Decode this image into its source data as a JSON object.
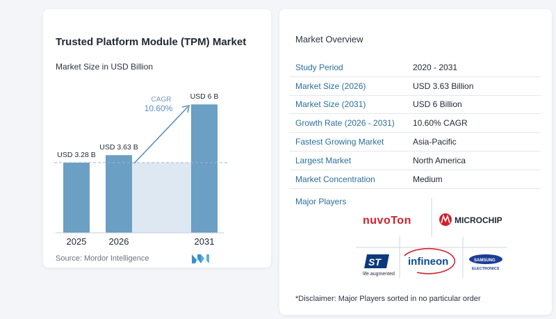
{
  "chart": {
    "title": "Trusted Platform Module (TPM) Market",
    "subtitle": "Market Size in USD Billion",
    "source": "Source: Mordor Intelligence",
    "cagr_label": "CAGR",
    "cagr_value": "10.60%",
    "bar_color": "#6b9fc4",
    "accent_color": "#5a8fbf"
  },
  "chart_data": {
    "type": "bar",
    "categories": [
      "2025",
      "2026",
      "2031"
    ],
    "values": [
      3.28,
      3.63,
      6
    ],
    "data_labels": [
      "USD 3.28 B",
      "USD 3.63 B",
      "USD 6 B"
    ],
    "title": "Trusted Platform Module (TPM) Market",
    "subtitle": "Market Size in USD Billion",
    "ylim": [
      0,
      6.3
    ],
    "grid": false
  },
  "overview": {
    "title": "Market Overview",
    "rows": [
      {
        "label": "Study Period",
        "value": "2020 - 2031"
      },
      {
        "label": "Market Size (2026)",
        "value": "USD 3.63 Billion"
      },
      {
        "label": "Market Size (2031)",
        "value": "USD 6 Billion"
      },
      {
        "label": "Growth Rate (2026 - 2031)",
        "value": "10.60% CAGR"
      },
      {
        "label": "Fastest Growing Market",
        "value": "Asia-Pacific"
      },
      {
        "label": "Largest Market",
        "value": "North America"
      },
      {
        "label": "Market Concentration",
        "value": "Medium"
      }
    ]
  },
  "players": {
    "title": "Major Players",
    "nuvoton": "nuvoTon",
    "microchip": "MICROCHIP",
    "st_tagline": "life.augmented",
    "infineon": "infineon",
    "samsung": "SAMSUNG",
    "samsung_sub": "ELECTRONICS"
  },
  "disclaimer": "*Disclaimer: Major Players sorted in no particular order"
}
